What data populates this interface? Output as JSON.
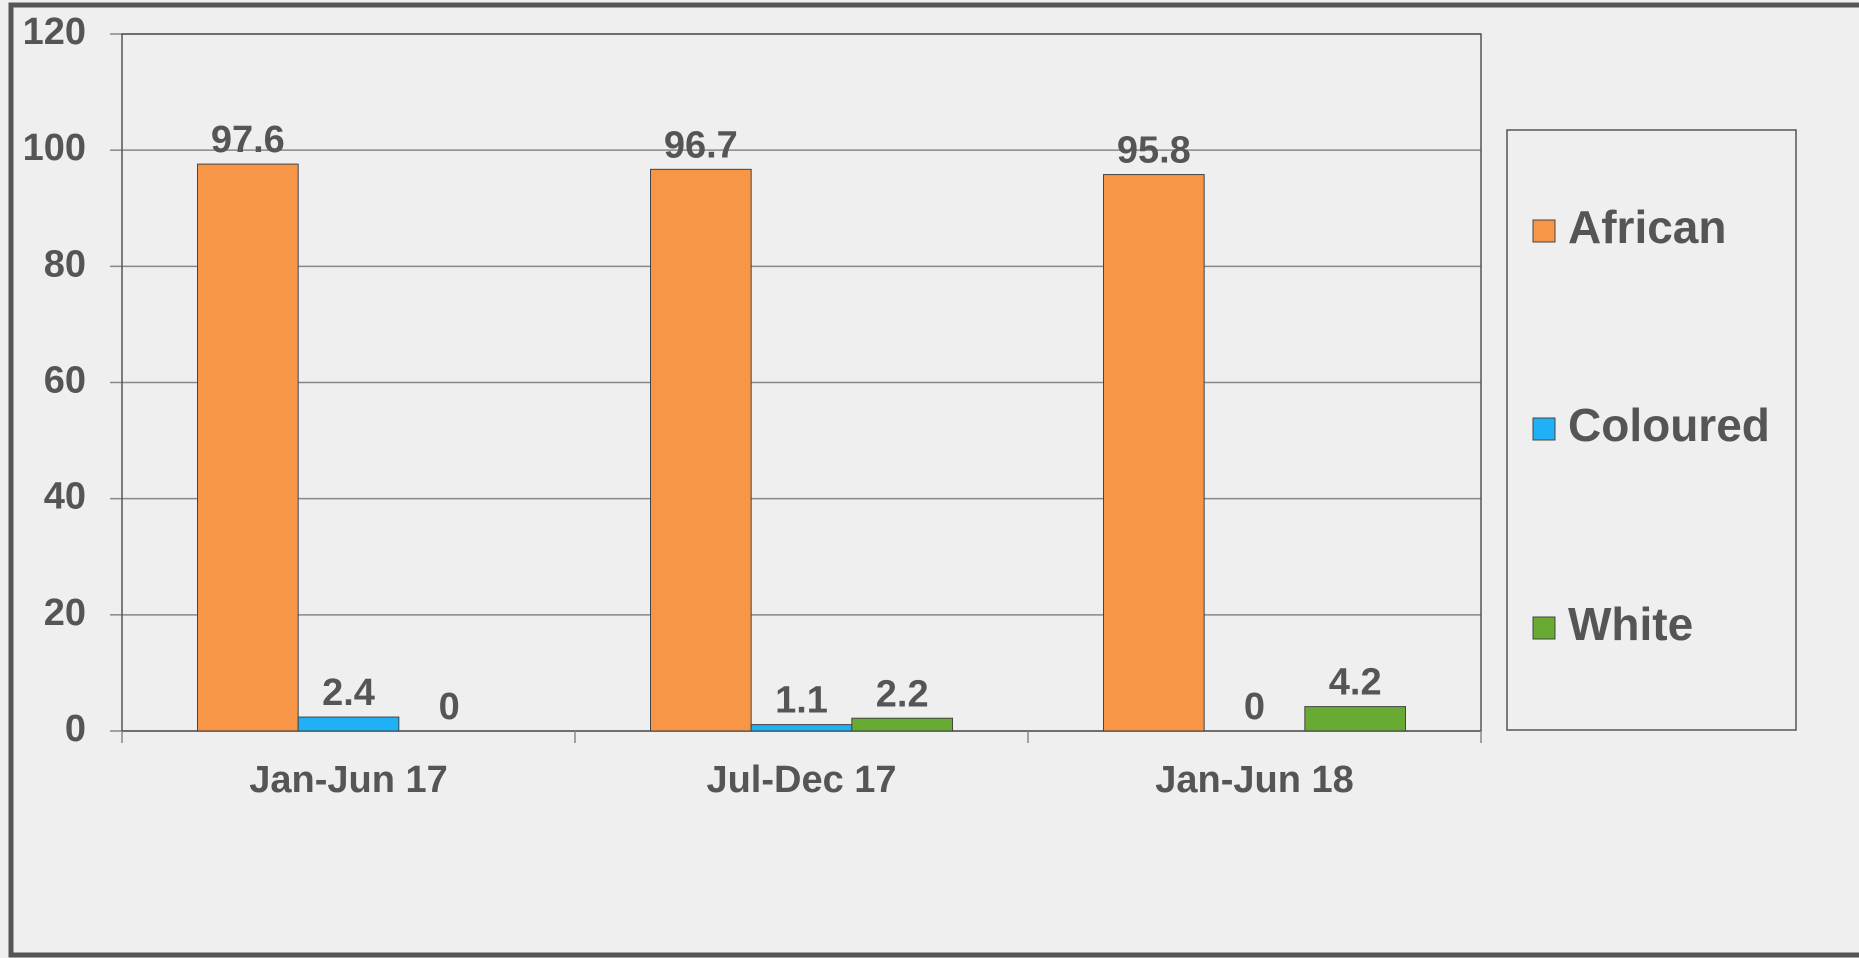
{
  "chart_data": {
    "type": "bar",
    "categories": [
      "Jan-Jun 17",
      "Jul-Dec 17",
      "Jan-Jun 18"
    ],
    "series": [
      {
        "name": "African",
        "color": "#f79646",
        "values": [
          97.6,
          96.7,
          95.8
        ]
      },
      {
        "name": "Coloured",
        "color": "#1fb0f5",
        "values": [
          2.4,
          1.1,
          0
        ]
      },
      {
        "name": "White",
        "color": "#69aa32",
        "values": [
          0,
          2.2,
          4.2
        ]
      }
    ],
    "ylim": [
      0,
      120
    ],
    "yticks": [
      0,
      20,
      40,
      60,
      80,
      100,
      120
    ],
    "grid": true,
    "legend": "right"
  }
}
